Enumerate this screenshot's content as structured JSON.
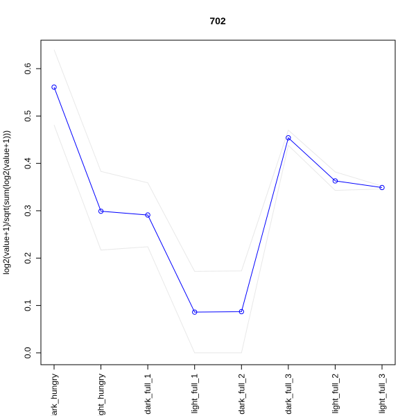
{
  "chart_data": {
    "type": "line",
    "title": "702",
    "xlabel": "",
    "ylabel": "log2(value+1)/sqrt(sum(log2(value+1)))",
    "categories": [
      "dark_hungry",
      "light_hungry",
      "dark_full_1",
      "light_full_1",
      "dark_full_2",
      "dark_full_3",
      "light_full_2",
      "light_full_3"
    ],
    "ylim": [
      -0.025,
      0.66
    ],
    "yticks": [
      "0.0",
      "0.1",
      "0.2",
      "0.3",
      "0.4",
      "0.5",
      "0.6"
    ],
    "grid": false,
    "colors": {
      "main": "#0000ff",
      "band": "#e8e8e8"
    },
    "series": [
      {
        "role": "main",
        "values": [
          0.561,
          0.299,
          0.291,
          0.086,
          0.087,
          0.454,
          0.363,
          0.349
        ]
      },
      {
        "role": "upper",
        "values": [
          0.64,
          0.383,
          0.359,
          0.172,
          0.173,
          0.47,
          0.382,
          0.352
        ]
      },
      {
        "role": "lower",
        "values": [
          0.481,
          0.217,
          0.224,
          0.0,
          0.0,
          0.438,
          0.343,
          0.346
        ]
      }
    ]
  }
}
